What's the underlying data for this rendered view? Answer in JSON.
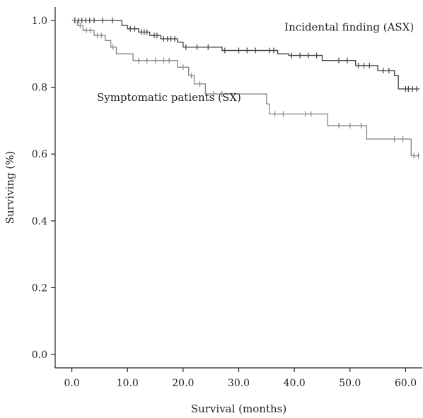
{
  "chart_data": {
    "type": "line",
    "title": "",
    "xlabel": "Survival (months)",
    "ylabel": "Surviving (%)",
    "xlim": [
      -3,
      63
    ],
    "ylim": [
      -0.04,
      1.04
    ],
    "x_ticks": [
      0,
      10,
      20,
      30,
      40,
      50,
      60
    ],
    "x_tick_labels": [
      "0.0",
      "10.0",
      "20.0",
      "30.0",
      "40.0",
      "50.0",
      "60.0"
    ],
    "y_ticks": [
      0,
      0.2,
      0.4,
      0.6,
      0.8,
      1.0
    ],
    "y_tick_labels": [
      "0.0",
      "0.2",
      "0.4",
      "0.6",
      "0.8",
      "1.0"
    ],
    "grid": false,
    "legend": "none",
    "series": [
      {
        "name": "Incidental finding (ASX)",
        "color": "#4a4a4a",
        "steps": [
          [
            0,
            1.0
          ],
          [
            9,
            0.985
          ],
          [
            10,
            0.975
          ],
          [
            12,
            0.965
          ],
          [
            14,
            0.955
          ],
          [
            16,
            0.945
          ],
          [
            19,
            0.935
          ],
          [
            20,
            0.92
          ],
          [
            27,
            0.91
          ],
          [
            37,
            0.9
          ],
          [
            39,
            0.895
          ],
          [
            45,
            0.88
          ],
          [
            51,
            0.865
          ],
          [
            55,
            0.85
          ],
          [
            58,
            0.835
          ],
          [
            58.7,
            0.795
          ],
          [
            62.5,
            0.795
          ]
        ],
        "censored": [
          [
            0.5,
            1.0
          ],
          [
            1.2,
            1.0
          ],
          [
            1.8,
            1.0
          ],
          [
            2.5,
            1.0
          ],
          [
            3.2,
            1.0
          ],
          [
            4.0,
            1.0
          ],
          [
            5.5,
            1.0
          ],
          [
            7.3,
            1.0
          ],
          [
            10.5,
            0.975
          ],
          [
            11.3,
            0.975
          ],
          [
            12.5,
            0.965
          ],
          [
            13.0,
            0.965
          ],
          [
            13.5,
            0.965
          ],
          [
            14.8,
            0.955
          ],
          [
            15.3,
            0.955
          ],
          [
            16.5,
            0.945
          ],
          [
            17.2,
            0.945
          ],
          [
            17.8,
            0.945
          ],
          [
            18.5,
            0.945
          ],
          [
            20.5,
            0.92
          ],
          [
            22.5,
            0.92
          ],
          [
            24.5,
            0.92
          ],
          [
            27.5,
            0.91
          ],
          [
            30.0,
            0.91
          ],
          [
            31.5,
            0.91
          ],
          [
            33.0,
            0.91
          ],
          [
            35.5,
            0.91
          ],
          [
            36.3,
            0.91
          ],
          [
            39.5,
            0.895
          ],
          [
            41.0,
            0.895
          ],
          [
            42.5,
            0.895
          ],
          [
            44.0,
            0.895
          ],
          [
            48.0,
            0.88
          ],
          [
            49.5,
            0.88
          ],
          [
            51.5,
            0.865
          ],
          [
            52.5,
            0.865
          ],
          [
            53.5,
            0.865
          ],
          [
            56.0,
            0.85
          ],
          [
            57.0,
            0.85
          ],
          [
            60.0,
            0.795
          ],
          [
            60.5,
            0.795
          ],
          [
            61.2,
            0.795
          ],
          [
            62.0,
            0.795
          ]
        ]
      },
      {
        "name": "Symptomatic patients (SX)",
        "color": "#8c8c8c",
        "steps": [
          [
            0,
            1.0
          ],
          [
            1,
            0.985
          ],
          [
            2,
            0.97
          ],
          [
            4,
            0.955
          ],
          [
            6,
            0.94
          ],
          [
            7,
            0.92
          ],
          [
            8,
            0.9
          ],
          [
            11,
            0.88
          ],
          [
            19,
            0.86
          ],
          [
            21,
            0.835
          ],
          [
            22,
            0.81
          ],
          [
            24,
            0.78
          ],
          [
            35,
            0.75
          ],
          [
            35.5,
            0.72
          ],
          [
            46,
            0.685
          ],
          [
            53,
            0.645
          ],
          [
            61,
            0.595
          ],
          [
            62.5,
            0.595
          ]
        ],
        "censored": [
          [
            0.6,
            1.0
          ],
          [
            1.5,
            0.985
          ],
          [
            2.6,
            0.97
          ],
          [
            3.3,
            0.97
          ],
          [
            4.6,
            0.955
          ],
          [
            5.3,
            0.955
          ],
          [
            7.4,
            0.92
          ],
          [
            12.0,
            0.88
          ],
          [
            13.5,
            0.88
          ],
          [
            15.0,
            0.88
          ],
          [
            16.5,
            0.88
          ],
          [
            17.5,
            0.88
          ],
          [
            20.0,
            0.86
          ],
          [
            21.5,
            0.835
          ],
          [
            23.0,
            0.81
          ],
          [
            25.5,
            0.78
          ],
          [
            27.0,
            0.78
          ],
          [
            36.5,
            0.72
          ],
          [
            38.0,
            0.72
          ],
          [
            42.0,
            0.72
          ],
          [
            43.0,
            0.72
          ],
          [
            48.0,
            0.685
          ],
          [
            50.0,
            0.685
          ],
          [
            52.0,
            0.685
          ],
          [
            58.0,
            0.645
          ],
          [
            59.5,
            0.645
          ],
          [
            61.5,
            0.595
          ],
          [
            62.3,
            0.595
          ]
        ]
      }
    ],
    "annotations": [
      {
        "id": "asx",
        "text": "Incidental finding (ASX)",
        "x": 61.5,
        "y": 0.98
      },
      {
        "id": "sx",
        "text": "Symptomatic patients (SX)",
        "x": 4.5,
        "y": 0.77
      }
    ]
  }
}
